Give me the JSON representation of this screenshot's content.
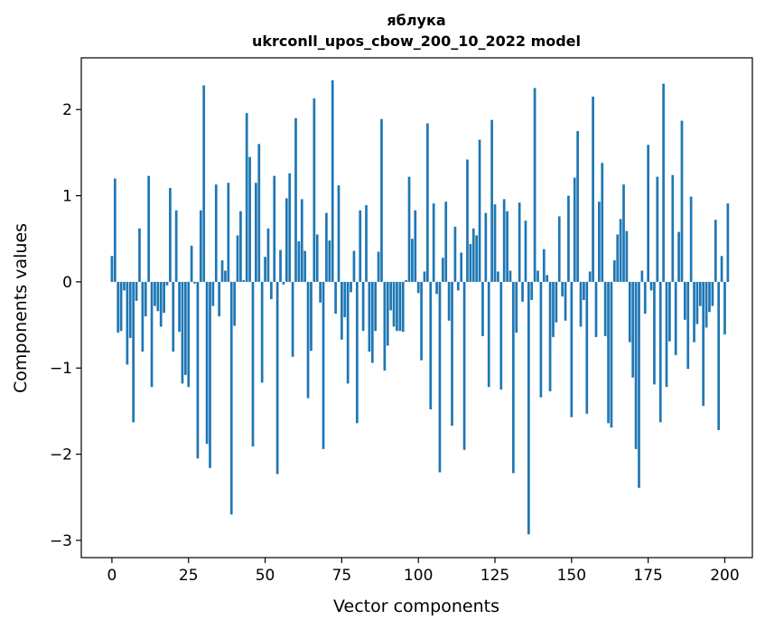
{
  "chart_data": {
    "type": "bar",
    "title_line1": "яблука",
    "title_line2": "ukrconll_upos_cbow_200_10_2022 model",
    "xlabel": "Vector components",
    "ylabel": "Components values",
    "xlim": [
      -10,
      209
    ],
    "ylim": [
      -3.2,
      2.6
    ],
    "xticks": [
      0,
      25,
      50,
      75,
      100,
      125,
      150,
      175,
      200
    ],
    "xtick_labels": [
      "0",
      "25",
      "50",
      "75",
      "100",
      "125",
      "150",
      "175",
      "200"
    ],
    "yticks": [
      -3,
      -2,
      -1,
      0,
      1,
      2
    ],
    "ytick_labels": [
      "−3",
      "−2",
      "−1",
      "0",
      "1",
      "2"
    ],
    "grid": false,
    "bar_color": "#1f77b4",
    "values": [
      0.3,
      1.2,
      -0.59,
      -0.57,
      -0.1,
      -0.96,
      -0.65,
      -1.63,
      -0.22,
      0.62,
      -0.81,
      -0.4,
      1.23,
      -1.22,
      -0.28,
      -0.34,
      -0.52,
      -0.36,
      -0.04,
      1.09,
      -0.81,
      0.83,
      -0.58,
      -1.18,
      -1.08,
      -1.22,
      0.42,
      -0.02,
      -2.05,
      0.83,
      2.28,
      -1.88,
      -2.16,
      -0.28,
      1.13,
      -0.4,
      0.25,
      0.13,
      1.15,
      -2.7,
      -0.51,
      0.54,
      0.82,
      0.02,
      1.96,
      1.45,
      -1.91,
      1.15,
      1.6,
      -1.17,
      0.29,
      0.62,
      -0.2,
      1.23,
      -2.23,
      0.37,
      -0.03,
      0.97,
      1.26,
      -0.87,
      1.9,
      0.47,
      0.96,
      0.36,
      -1.35,
      -0.8,
      2.13,
      0.55,
      -0.24,
      -1.94,
      0.8,
      0.48,
      2.34,
      -0.37,
      1.12,
      -0.67,
      -0.41,
      -1.18,
      -0.12,
      0.36,
      -1.64,
      0.83,
      -0.57,
      0.89,
      -0.81,
      -0.94,
      -0.57,
      0.35,
      1.89,
      -1.03,
      -0.74,
      -0.33,
      -0.52,
      -0.57,
      -0.57,
      -0.58,
      0.02,
      1.22,
      0.5,
      0.83,
      -0.13,
      -0.91,
      0.12,
      1.84,
      -1.48,
      0.91,
      -0.14,
      -2.21,
      0.28,
      0.93,
      -0.45,
      -1.67,
      0.64,
      -0.1,
      0.34,
      -1.95,
      1.42,
      0.44,
      0.62,
      0.54,
      1.65,
      -0.63,
      0.8,
      -1.22,
      1.88,
      0.9,
      0.12,
      -1.25,
      0.96,
      0.82,
      0.13,
      -2.22,
      -0.59,
      0.92,
      -0.23,
      0.71,
      -2.93,
      -0.21,
      2.25,
      0.13,
      -1.34,
      0.38,
      0.08,
      -1.27,
      -0.64,
      -0.47,
      0.76,
      -0.17,
      -0.45,
      1.0,
      -1.57,
      1.21,
      1.75,
      -0.52,
      -0.21,
      -1.53,
      0.12,
      2.15,
      -0.64,
      0.93,
      1.38,
      -0.63,
      -1.64,
      -1.69,
      0.25,
      0.55,
      0.73,
      1.13,
      0.59,
      -0.7,
      -1.11,
      -1.94,
      -2.39,
      0.13,
      -0.37,
      1.59,
      -0.1,
      -1.19,
      1.22,
      -1.63,
      2.3,
      -1.22,
      -0.69,
      1.24,
      -0.85,
      0.58,
      1.87,
      -0.44,
      -1.01,
      0.99,
      -0.7,
      -0.49,
      -0.28,
      -1.44,
      -0.53,
      -0.35,
      -0.28,
      0.72,
      -1.72,
      0.3,
      -0.61,
      0.91
    ]
  }
}
